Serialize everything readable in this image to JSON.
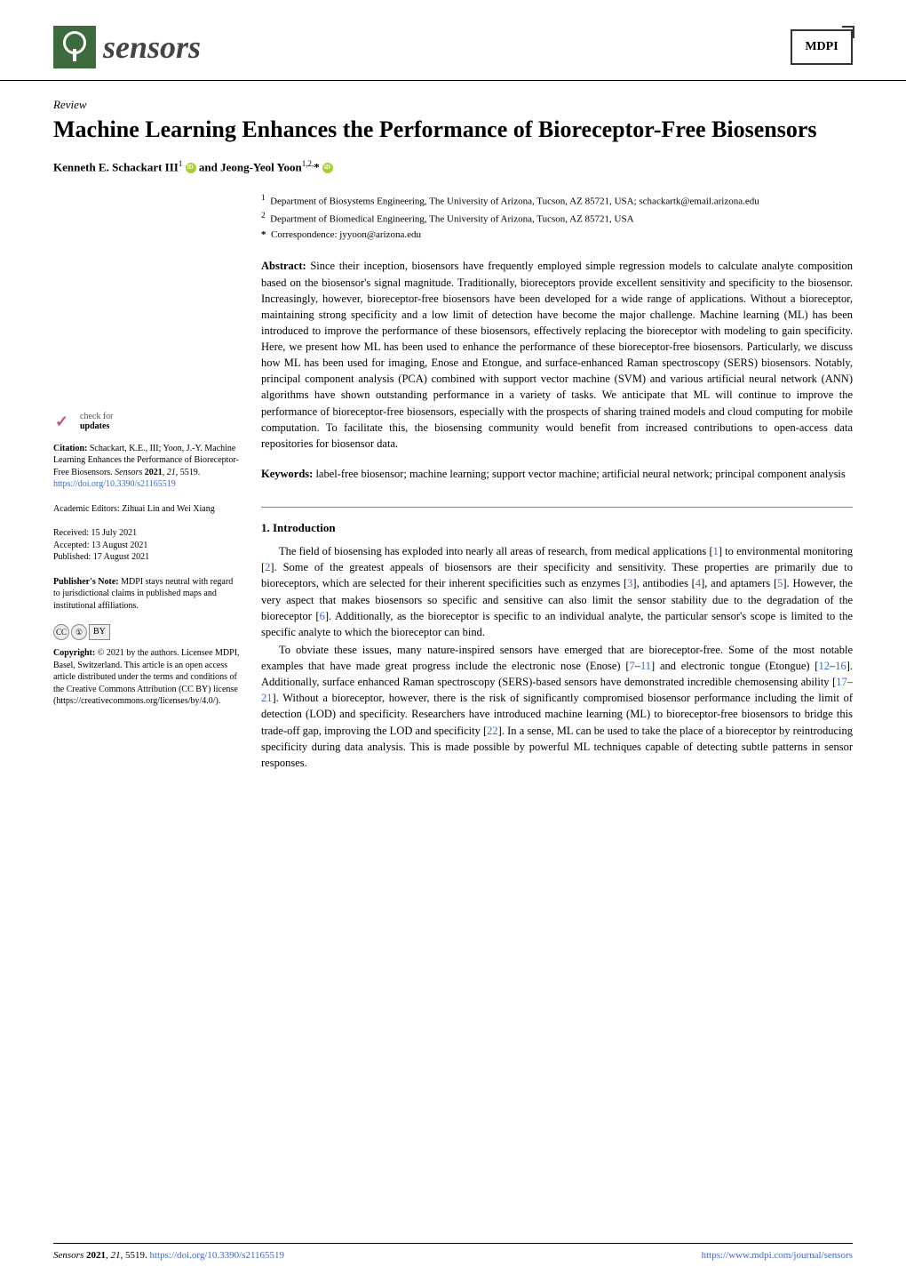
{
  "header": {
    "journal_name": "sensors",
    "publisher_logo": "MDPI"
  },
  "article": {
    "type": "Review",
    "title": "Machine Learning Enhances the Performance of Bioreceptor-Free Biosensors",
    "authors_html": "Kenneth E. Schackart III ¹ ⓘ and Jeong-Yeol Yoon ¹,²,* ⓘ",
    "author1_name": "Kenneth E. Schackart III",
    "author1_sup": "1",
    "author_and": " and ",
    "author2_name": "Jeong-Yeol Yoon",
    "author2_sup": "1,2,",
    "author2_star": "*"
  },
  "affiliations": {
    "a1_sup": "1",
    "a1_text": "Department of Biosystems Engineering, The University of Arizona, Tucson, AZ 85721, USA; schackartk@email.arizona.edu",
    "a2_sup": "2",
    "a2_text": "Department of Biomedical Engineering, The University of Arizona, Tucson, AZ 85721, USA",
    "corr_sup": "*",
    "corr_text": "Correspondence: jyyoon@arizona.edu"
  },
  "abstract": {
    "label": "Abstract:",
    "text": " Since their inception, biosensors have frequently employed simple regression models to calculate analyte composition based on the biosensor's signal magnitude. Traditionally, bioreceptors provide excellent sensitivity and specificity to the biosensor. Increasingly, however, bioreceptor-free biosensors have been developed for a wide range of applications. Without a bioreceptor, maintaining strong specificity and a low limit of detection have become the major challenge. Machine learning (ML) has been introduced to improve the performance of these biosensors, effectively replacing the bioreceptor with modeling to gain specificity. Here, we present how ML has been used to enhance the performance of these bioreceptor-free biosensors. Particularly, we discuss how ML has been used for imaging, Enose and Etongue, and surface-enhanced Raman spectroscopy (SERS) biosensors. Notably, principal component analysis (PCA) combined with support vector machine (SVM) and various artificial neural network (ANN) algorithms have shown outstanding performance in a variety of tasks. We anticipate that ML will continue to improve the performance of bioreceptor-free biosensors, especially with the prospects of sharing trained models and cloud computing for mobile computation. To facilitate this, the biosensing community would benefit from increased contributions to open-access data repositories for biosensor data."
  },
  "keywords": {
    "label": "Keywords:",
    "text": " label-free biosensor; machine learning; support vector machine; artificial neural network; principal component analysis"
  },
  "section1": {
    "heading": "1. Introduction",
    "p1_a": "The field of biosensing has exploded into nearly all areas of research, from medical applications [",
    "p1_r1": "1",
    "p1_b": "] to environmental monitoring [",
    "p1_r2": "2",
    "p1_c": "]. Some of the greatest appeals of biosensors are their specificity and sensitivity. These properties are primarily due to bioreceptors, which are selected for their inherent specificities such as enzymes [",
    "p1_r3": "3",
    "p1_d": "], antibodies [",
    "p1_r4": "4",
    "p1_e": "], and aptamers [",
    "p1_r5": "5",
    "p1_f": "]. However, the very aspect that makes biosensors so specific and sensitive can also limit the sensor stability due to the degradation of the bioreceptor [",
    "p1_r6": "6",
    "p1_g": "]. Additionally, as the bioreceptor is specific to an individual analyte, the particular sensor's scope is limited to the specific analyte to which the bioreceptor can bind.",
    "p2_a": "To obviate these issues, many nature-inspired sensors have emerged that are bioreceptor-free. Some of the most notable examples that have made great progress include the electronic nose (Enose) [",
    "p2_r1": "7",
    "p2_dash1": "–",
    "p2_r2": "11",
    "p2_b": "] and electronic tongue (Etongue) [",
    "p2_r3": "12",
    "p2_dash2": "–",
    "p2_r4": "16",
    "p2_c": "]. Additionally, surface enhanced Raman spectroscopy (SERS)-based sensors have demonstrated incredible chemosensing ability [",
    "p2_r5": "17",
    "p2_dash3": "–",
    "p2_r6": "21",
    "p2_d": "]. Without a bioreceptor, however, there is the risk of significantly compromised biosensor performance including the limit of detection (LOD) and specificity. Researchers have introduced machine learning (ML) to bioreceptor-free biosensors to bridge this trade-off gap, improving the LOD and specificity [",
    "p2_r7": "22",
    "p2_e": "]. In a sense, ML can be used to take the place of a bioreceptor by reintroducing specificity during data analysis. This is made possible by powerful ML techniques capable of detecting subtle patterns in sensor responses."
  },
  "sidebar": {
    "check_line1": "check for",
    "check_line2": "updates",
    "citation_label": "Citation:",
    "citation_text": " Schackart, K.E., III; Yoon, J.-Y. Machine Learning Enhances the Performance of Bioreceptor-Free Biosensors. ",
    "citation_journal": "Sensors",
    "citation_year": " 2021",
    "citation_vol": ", 21",
    "citation_page": ", 5519. ",
    "citation_doi": "https://doi.org/10.3390/s21165519",
    "editors_label": "Academic Editors: ",
    "editors_text": "Zihuai Lin and Wei Xiang",
    "received_label": "Received: ",
    "received_date": "15 July 2021",
    "accepted_label": "Accepted: ",
    "accepted_date": "13 August 2021",
    "published_label": "Published: ",
    "published_date": "17 August 2021",
    "pubnote_label": "Publisher's Note:",
    "pubnote_text": " MDPI stays neutral with regard to jurisdictional claims in published maps and institutional affiliations.",
    "cc_label": "CC",
    "by_label": "BY",
    "copyright_label": "Copyright:",
    "copyright_text": " © 2021 by the authors. Licensee MDPI, Basel, Switzerland. This article is an open access article distributed under the terms and conditions of the Creative Commons Attribution (CC BY) license (https://creativecommons.org/licenses/by/4.0/)."
  },
  "footer": {
    "left_journal": "Sensors",
    "left_year": " 2021",
    "left_vol": ", 21",
    "left_page": ", 5519. ",
    "left_doi": "https://doi.org/10.3390/s21165519",
    "right_url": "https://www.mdpi.com/journal/sensors"
  },
  "colors": {
    "link": "#4169c7",
    "logo_bg": "#3d6b3d",
    "orcid": "#a6ce39",
    "check": "#c94f7c"
  }
}
